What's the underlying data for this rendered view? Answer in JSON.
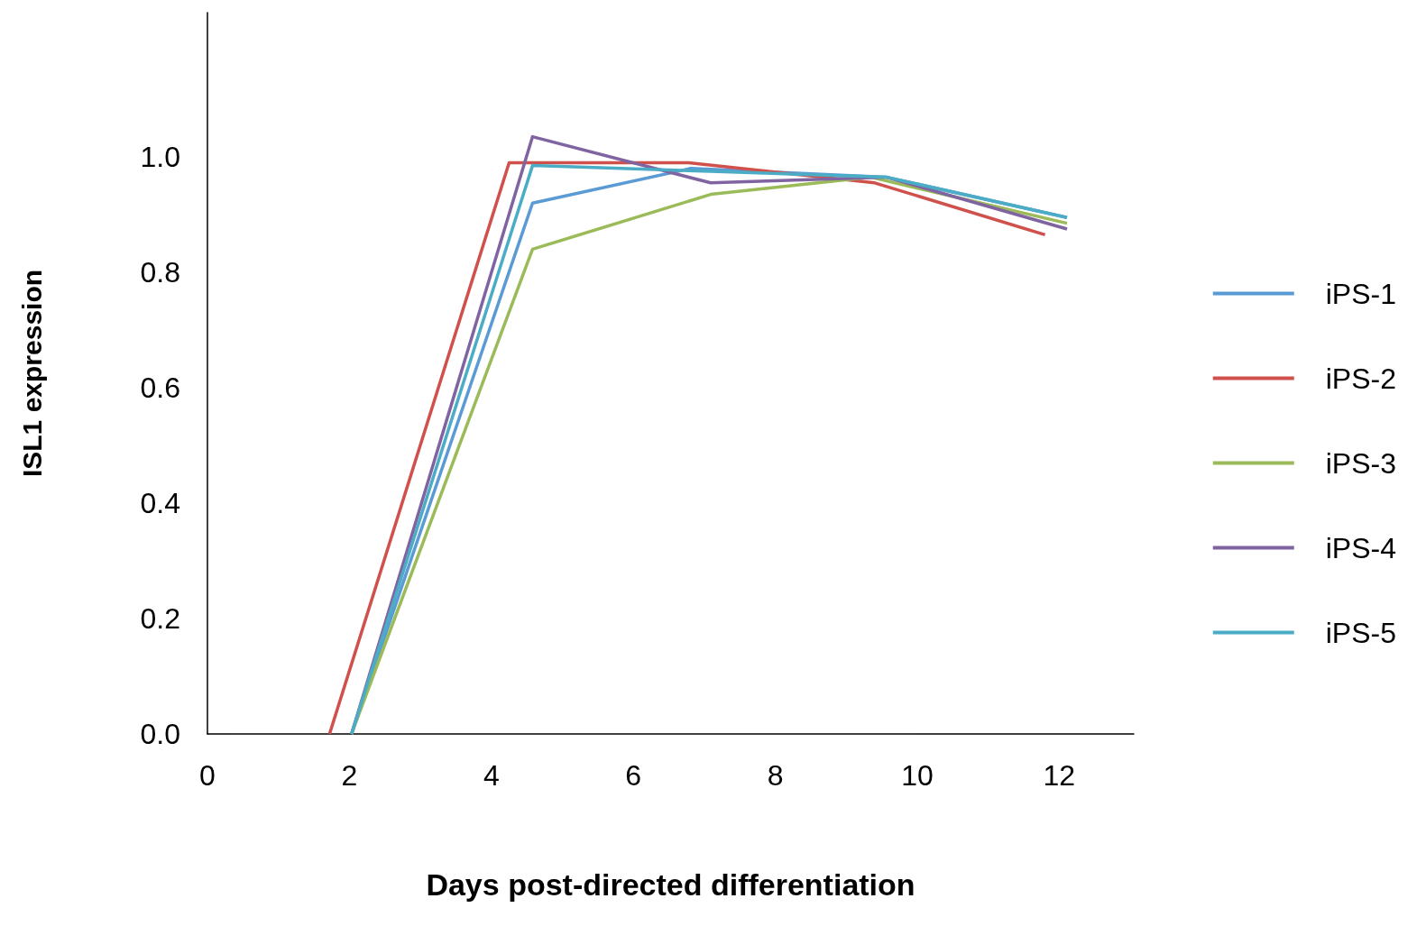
{
  "chart_data": {
    "type": "line",
    "xlabel": "Days post-directed differentiation",
    "ylabel": "ISL1 expression",
    "xlim": [
      0,
      13.05
    ],
    "xticks": [
      0,
      2,
      4,
      6,
      8,
      10,
      12
    ],
    "ylim": [
      0,
      1.25
    ],
    "yticks": [
      {
        "value": 0,
        "label": "0.0"
      },
      0.2,
      0.4,
      0.6,
      0.8,
      {
        "value": 1,
        "label": "1.0"
      }
    ],
    "grid": false,
    "legend": "right",
    "marker": "none",
    "series": [
      {
        "name": "iPS-1",
        "color": "#5b9bd5",
        "x": [
          2.03,
          4.58,
          6.81,
          9.56,
          12.11
        ],
        "values": [
          0,
          0.92,
          0.98,
          0.965,
          0.895
        ]
      },
      {
        "name": "iPS-2",
        "color": "#d0504c",
        "x": [
          1.72,
          4.25,
          6.78,
          9.4,
          11.8
        ],
        "values": [
          0,
          0.99,
          0.99,
          0.955,
          0.865
        ]
      },
      {
        "name": "iPS-3",
        "color": "#9bbb59",
        "x": [
          2.03,
          4.58,
          7.09,
          9.34,
          12.11
        ],
        "values": [
          0,
          0.84,
          0.935,
          0.965,
          0.885
        ]
      },
      {
        "name": "iPS-4",
        "color": "#8064a2",
        "x": [
          2.03,
          4.58,
          7.09,
          9.56,
          12.11
        ],
        "values": [
          0,
          1.035,
          0.955,
          0.965,
          0.875
        ]
      },
      {
        "name": "iPS-5",
        "color": "#4bacc6",
        "x": [
          2.03,
          4.58,
          7.09,
          9.56,
          12.11
        ],
        "values": [
          0,
          0.985,
          0.975,
          0.965,
          0.895
        ]
      }
    ]
  }
}
